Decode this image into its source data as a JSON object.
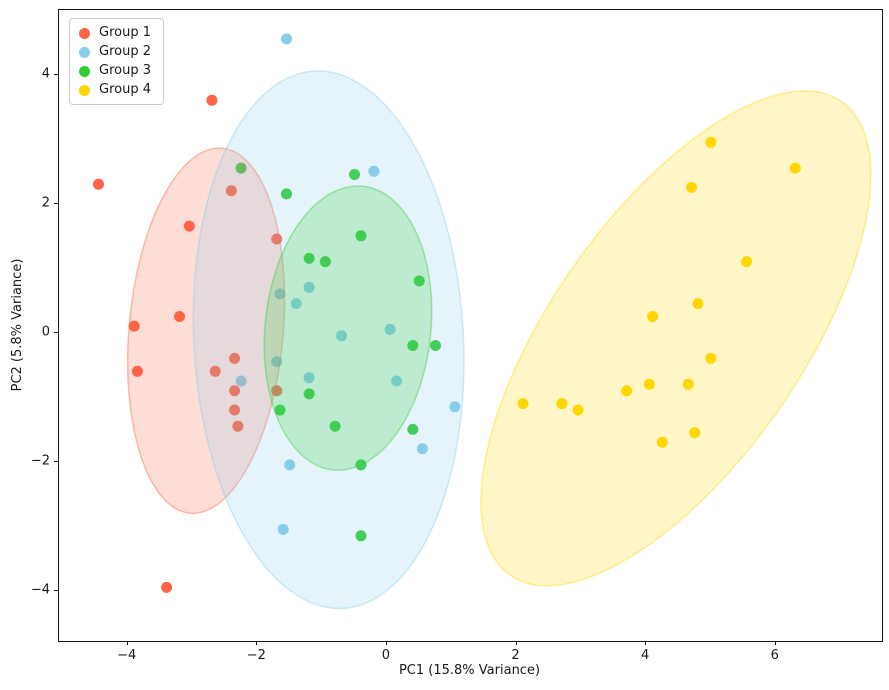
{
  "chart_data": {
    "type": "scatter",
    "title": "",
    "xlabel": "PC1 (15.8% Variance)",
    "ylabel": "PC2 (5.8% Variance)",
    "xlim": [
      -5.06,
      7.64
    ],
    "ylim": [
      -4.78,
      5.0
    ],
    "xticks": [
      -4,
      -2,
      0,
      2,
      4,
      6
    ],
    "yticks": [
      -4,
      -2,
      0,
      2,
      4
    ],
    "grid": false,
    "legend_position": "upper left",
    "marker_radius_px": 5.5,
    "ellipse_fill_alpha": 0.22,
    "ellipse_stroke_alpha": 0.4,
    "series": [
      {
        "name": "Group 1",
        "color": "#FF6347",
        "points": [
          [
            -4.45,
            2.3
          ],
          [
            -2.7,
            3.6
          ],
          [
            -3.05,
            1.65
          ],
          [
            -2.4,
            2.2
          ],
          [
            -1.7,
            1.45
          ],
          [
            -3.2,
            0.25
          ],
          [
            -3.9,
            0.1
          ],
          [
            -3.85,
            -0.6
          ],
          [
            -2.35,
            -0.4
          ],
          [
            -2.65,
            -0.6
          ],
          [
            -2.35,
            -0.9
          ],
          [
            -1.7,
            -0.9
          ],
          [
            -2.35,
            -1.2
          ],
          [
            -2.3,
            -1.45
          ],
          [
            -3.4,
            -3.95
          ]
        ],
        "ellipse": {
          "cx": -2.79,
          "cy": 0.03,
          "semi_major": 2.84,
          "semi_minor": 1.19,
          "rotation_deg": 5
        }
      },
      {
        "name": "Group 2",
        "color": "#87CEEB",
        "points": [
          [
            -1.55,
            4.55
          ],
          [
            -0.2,
            2.5
          ],
          [
            -1.65,
            0.6
          ],
          [
            -1.2,
            0.7
          ],
          [
            -1.4,
            0.45
          ],
          [
            -0.7,
            -0.05
          ],
          [
            0.05,
            0.05
          ],
          [
            -2.25,
            -0.75
          ],
          [
            -1.7,
            -0.45
          ],
          [
            -1.2,
            -0.7
          ],
          [
            0.15,
            -0.75
          ],
          [
            0.55,
            -1.8
          ],
          [
            1.05,
            -1.15
          ],
          [
            -1.5,
            -2.05
          ],
          [
            -1.6,
            -3.05
          ]
        ],
        "ellipse": {
          "cx": -0.9,
          "cy": -0.11,
          "semi_major": 4.17,
          "semi_minor": 2.08,
          "rotation_deg": -3
        }
      },
      {
        "name": "Group 3",
        "color": "#32CD32",
        "points": [
          [
            -2.25,
            2.55
          ],
          [
            -1.55,
            2.15
          ],
          [
            -0.5,
            2.45
          ],
          [
            -0.4,
            1.5
          ],
          [
            -1.2,
            1.15
          ],
          [
            -0.95,
            1.1
          ],
          [
            0.5,
            0.8
          ],
          [
            0.4,
            -0.2
          ],
          [
            0.75,
            -0.2
          ],
          [
            -1.2,
            -0.95
          ],
          [
            -1.65,
            -1.2
          ],
          [
            -0.8,
            -1.45
          ],
          [
            0.4,
            -1.5
          ],
          [
            -0.4,
            -2.05
          ],
          [
            -0.4,
            -3.15
          ]
        ],
        "ellipse": {
          "cx": -0.6,
          "cy": 0.07,
          "semi_major": 2.21,
          "semi_minor": 1.28,
          "rotation_deg": 6
        }
      },
      {
        "name": "Group 4",
        "color": "#FFD700",
        "points": [
          [
            5.0,
            2.95
          ],
          [
            6.3,
            2.55
          ],
          [
            4.7,
            2.25
          ],
          [
            5.55,
            1.1
          ],
          [
            4.8,
            0.45
          ],
          [
            4.1,
            0.25
          ],
          [
            5.0,
            -0.4
          ],
          [
            4.65,
            -0.8
          ],
          [
            4.05,
            -0.8
          ],
          [
            3.7,
            -0.9
          ],
          [
            2.1,
            -1.1
          ],
          [
            2.7,
            -1.1
          ],
          [
            2.95,
            -1.2
          ],
          [
            4.25,
            -1.7
          ],
          [
            4.75,
            -1.55
          ]
        ],
        "ellipse": {
          "cx": 4.46,
          "cy": -0.09,
          "semi_major": 4.48,
          "semi_minor": 1.93,
          "rotation_deg": 35
        }
      }
    ]
  },
  "legend": {
    "items": [
      {
        "label": "Group 1",
        "color": "#FF6347"
      },
      {
        "label": "Group 2",
        "color": "#87CEEB"
      },
      {
        "label": "Group 3",
        "color": "#32CD32"
      },
      {
        "label": "Group 4",
        "color": "#FFD700"
      }
    ]
  }
}
